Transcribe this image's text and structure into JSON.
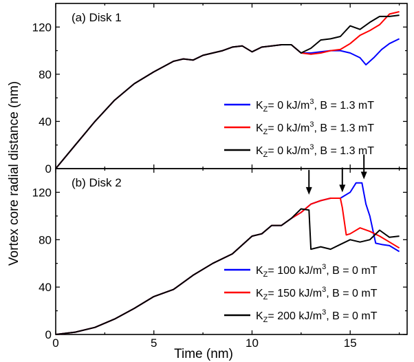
{
  "chart_data": {
    "type": "line",
    "xlabel": "Time (nm)",
    "ylabel": "Vortex core radial distance (nm)",
    "xlim": [
      0,
      17.9
    ],
    "x_ticks": [
      "0",
      "5",
      "10",
      "15"
    ],
    "panels": [
      {
        "title": "(a) Disk 1",
        "ylim": [
          0,
          140
        ],
        "y_ticks": [
          "0",
          "40",
          "80",
          "120"
        ],
        "legend_position": "lower-right",
        "series": [
          {
            "name": "K_Z= 0 kJ/m^3, B = 1.3 mT",
            "legend": {
              "k": "K",
              "sub": "Z",
              "main": "= 0 kJ/m",
              "sup": "3",
              "rest": ", B = 1.3 mT"
            },
            "color": "#0000ff",
            "x": [
              0,
              1,
              2,
              3,
              4,
              5,
              6,
              6.5,
              7,
              7.5,
              8,
              8.5,
              9,
              9.5,
              10,
              10.5,
              11,
              11.5,
              12,
              12.5,
              13,
              13.5,
              14,
              14.5,
              15,
              15.5,
              15.8,
              16.2,
              16.6,
              17,
              17.5
            ],
            "y": [
              0,
              20,
              40,
              58,
              72,
              82,
              91,
              93,
              92,
              96,
              98,
              100,
              103,
              104,
              99,
              103,
              104,
              105,
              105,
              98,
              98,
              99,
              100,
              100,
              98,
              94,
              88,
              94,
              101,
              106,
              110
            ]
          },
          {
            "name": "K_Z= 0 kJ/m^3, B = 1.3 mT",
            "legend": {
              "k": "K",
              "sub": "Z",
              "main": "= 0 kJ/m",
              "sup": "3",
              "rest": ", B = 1.3 mT"
            },
            "color": "#ff0000",
            "x": [
              0,
              1,
              2,
              3,
              4,
              5,
              6,
              6.5,
              7,
              7.5,
              8,
              8.5,
              9,
              9.5,
              10,
              10.5,
              11,
              11.5,
              12,
              12.5,
              13,
              13.5,
              14,
              14.5,
              15,
              15.5,
              16,
              16.5,
              17,
              17.5
            ],
            "y": [
              0,
              20,
              40,
              58,
              72,
              82,
              91,
              93,
              92,
              96,
              98,
              100,
              103,
              104,
              99,
              103,
              104,
              105,
              105,
              98,
              97,
              98,
              100,
              101,
              106,
              113,
              117,
              122,
              131,
              133
            ]
          },
          {
            "name": "K_Z= 0 kJ/m^3, B = 1.3 mT",
            "legend": {
              "k": "K",
              "sub": "Z",
              "main": "= 0 kJ/m",
              "sup": "3",
              "rest": ", B = 1.3 mT"
            },
            "color": "#000000",
            "x": [
              0,
              1,
              2,
              3,
              4,
              5,
              6,
              6.5,
              7,
              7.5,
              8,
              8.5,
              9,
              9.5,
              10,
              10.5,
              11,
              11.5,
              12,
              12.5,
              13,
              13.5,
              14,
              14.5,
              15,
              15.5,
              16,
              16.5,
              17,
              17.5
            ],
            "y": [
              0,
              20,
              40,
              58,
              72,
              82,
              91,
              93,
              92,
              96,
              98,
              100,
              103,
              104,
              99,
              103,
              104,
              105,
              105,
              98,
              102,
              109,
              110,
              112,
              121,
              118,
              124,
              129,
              129,
              130
            ]
          }
        ]
      },
      {
        "title": "(b) Disk 2",
        "ylim": [
          0,
          140
        ],
        "y_ticks": [
          "0",
          "40",
          "80",
          "120"
        ],
        "legend_position": "lower-right",
        "annotations": [
          {
            "type": "arrow",
            "x": 12.9,
            "y": 118
          },
          {
            "type": "arrow",
            "x": 14.6,
            "y": 120
          },
          {
            "type": "arrow",
            "x": 15.7,
            "y": 131
          }
        ],
        "series": [
          {
            "name": "K_Z= 100 kJ/m^3, B = 0 mT",
            "legend": {
              "k": "K",
              "sub": "Z",
              "main": "= 100 kJ/m",
              "sup": "3",
              "rest": ", B = 0 mT"
            },
            "color": "#0000ff",
            "x": [
              0,
              1,
              2,
              3,
              4,
              5,
              6,
              7,
              8,
              9,
              10,
              10.5,
              11,
              11.5,
              12,
              12.5,
              13,
              13.5,
              14,
              14.5,
              15,
              15.3,
              15.6,
              15.8,
              16,
              16.3,
              16.6,
              17,
              17.5
            ],
            "y": [
              0,
              2,
              6,
              13,
              22,
              32,
              38,
              50,
              60,
              68,
              83,
              85,
              92,
              92,
              98,
              103,
              110,
              113,
              115,
              115,
              120,
              128,
              128,
              110,
              100,
              77,
              76,
              75,
              70
            ]
          },
          {
            "name": "K_Z= 150 kJ/m^3, B = 0 mT",
            "legend": {
              "k": "K",
              "sub": "Z",
              "main": "= 150 kJ/m",
              "sup": "3",
              "rest": ", B = 0 mT"
            },
            "color": "#ff0000",
            "x": [
              0,
              1,
              2,
              3,
              4,
              5,
              6,
              7,
              8,
              9,
              10,
              10.5,
              11,
              11.5,
              12,
              12.5,
              13,
              13.5,
              14,
              14.5,
              14.6,
              14.8,
              15,
              15.5,
              16,
              16.5,
              17,
              17.5
            ],
            "y": [
              0,
              2,
              6,
              13,
              22,
              32,
              38,
              50,
              60,
              68,
              83,
              85,
              92,
              92,
              98,
              103,
              110,
              113,
              115,
              115,
              107,
              84,
              85,
              90,
              87,
              83,
              78,
              73
            ]
          },
          {
            "name": "K_Z= 200 kJ/m^3, B = 0 mT",
            "legend": {
              "k": "K",
              "sub": "Z",
              "main": "= 200 kJ/m",
              "sup": "3",
              "rest": ", B = 0 mT"
            },
            "color": "#000000",
            "x": [
              0,
              1,
              2,
              3,
              4,
              5,
              6,
              7,
              8,
              9,
              10,
              10.5,
              11,
              11.5,
              12,
              12.5,
              12.9,
              13,
              13.5,
              14,
              14.5,
              15,
              15.5,
              16,
              16.5,
              17,
              17.5
            ],
            "y": [
              0,
              2,
              6,
              13,
              22,
              32,
              38,
              50,
              60,
              68,
              83,
              85,
              92,
              92,
              98,
              106,
              105,
              72,
              74,
              72,
              76,
              80,
              78,
              80,
              88,
              82,
              83
            ]
          }
        ]
      }
    ]
  }
}
